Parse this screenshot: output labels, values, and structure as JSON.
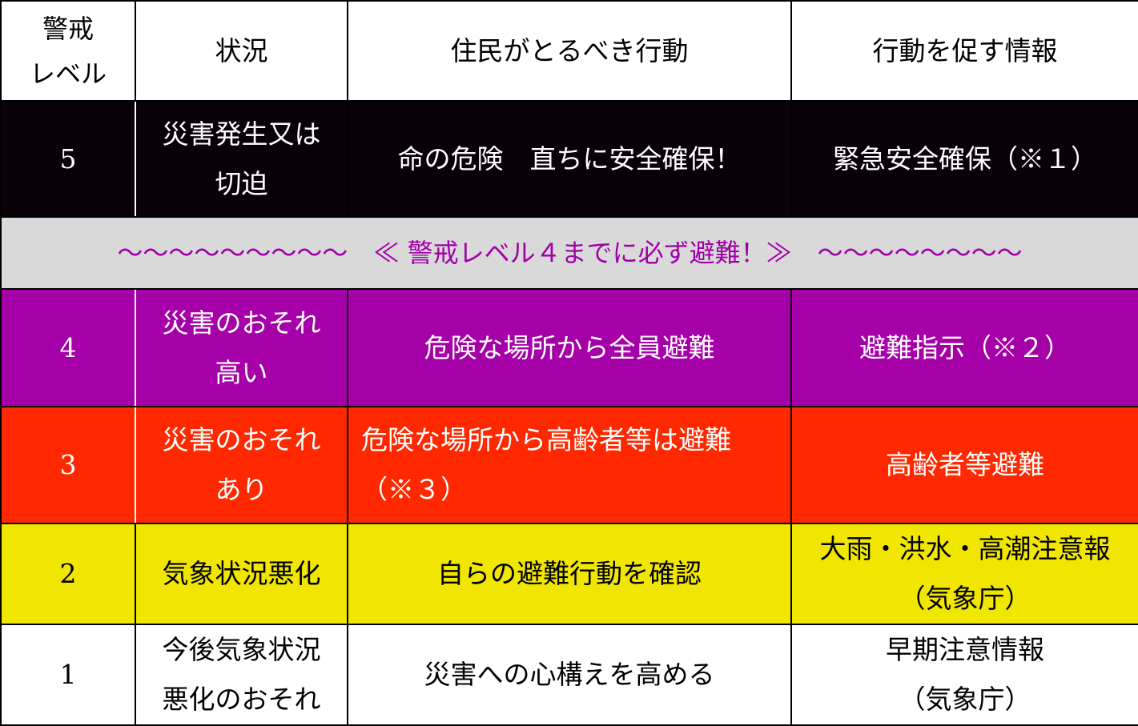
{
  "header": {
    "level_line1": "警戒",
    "level_line2": "レベル",
    "situation": "状況",
    "action": "住民がとるべき行動",
    "info": "行動を促す情報"
  },
  "banner": "～～～～～～～～～　≪ 警戒レベル４までに必ず避難！≫　～～～～～～～～",
  "rows": [
    {
      "level": "5",
      "situation_line1": "災害発生又は",
      "situation_line2": "切迫",
      "action_line1": "命の危険　直ちに安全確保！",
      "action_line2": "",
      "info_line1": "緊急安全確保（※１）",
      "info_line2": "",
      "color": "#0a0008"
    },
    {
      "level": "4",
      "situation_line1": "災害のおそれ",
      "situation_line2": "高い",
      "action_line1": "危険な場所から全員避難",
      "action_line2": "",
      "info_line1": "避難指示（※２）",
      "info_line2": "",
      "color": "#a600a8"
    },
    {
      "level": "3",
      "situation_line1": "災害のおそれ",
      "situation_line2": "あり",
      "action_line1": "危険な場所から高齢者等は避難",
      "action_line2": "（※３）",
      "info_line1": "高齢者等避難",
      "info_line2": "",
      "color": "#ff2800"
    },
    {
      "level": "2",
      "situation_line1": "気象状況悪化",
      "situation_line2": "",
      "action_line1": "自らの避難行動を確認",
      "action_line2": "",
      "info_line1": "大雨・洪水・高潮注意報",
      "info_line2": "（気象庁）",
      "color": "#f0e600"
    },
    {
      "level": "1",
      "situation_line1": "今後気象状況",
      "situation_line2": "悪化のおそれ",
      "action_line1": "災害への心構えを高める",
      "action_line2": "",
      "info_line1": "早期注意情報",
      "info_line2": "（気象庁）",
      "color": "#ffffff"
    }
  ]
}
